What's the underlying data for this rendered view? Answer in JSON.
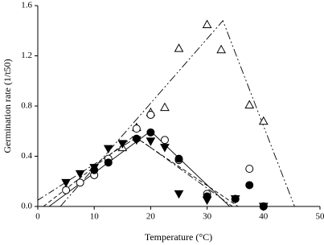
{
  "chart_data": {
    "type": "scatter",
    "x_label": "Temperature (°C)",
    "y_label": "Germination rate (1/t50)",
    "xlim": [
      0,
      50
    ],
    "xticks": [
      0,
      10,
      20,
      30,
      40,
      50
    ],
    "ylim": [
      0,
      1.6
    ],
    "yticks": [
      {
        "value": 0,
        "label": "0.0"
      },
      0.4,
      0.8,
      1.2,
      1.6
    ],
    "series": [
      {
        "marker": "triangle-up-open",
        "x": [
          15,
          17.5,
          20,
          22.5,
          25,
          30,
          32.5,
          37.5,
          40
        ],
        "values": [
          0.47,
          0.63,
          0.75,
          0.79,
          1.26,
          1.45,
          1.25,
          0.81,
          0.68
        ]
      },
      {
        "marker": "circle-open",
        "x": [
          5,
          7.5,
          10,
          12.5,
          17.5,
          20,
          22.5,
          25,
          30,
          35,
          37.5,
          40
        ],
        "values": [
          0.13,
          0.19,
          0.25,
          0.38,
          0.62,
          0.73,
          0.53,
          0.37,
          0.1,
          0.06,
          0.3,
          0
        ]
      },
      {
        "marker": "circle-filled",
        "x": [
          10,
          12.5,
          17.5,
          20,
          25,
          30,
          35,
          37.5,
          40
        ],
        "values": [
          0.29,
          0.35,
          0.54,
          0.59,
          0.38,
          0.08,
          0.06,
          0.17,
          0
        ]
      },
      {
        "marker": "triangle-down-filled",
        "x": [
          5,
          7.5,
          10,
          12.5,
          15,
          17.5,
          20,
          22.5,
          25,
          30,
          35,
          40
        ],
        "values": [
          0.19,
          0.26,
          0.31,
          0.46,
          0.5,
          0.53,
          0.52,
          0.47,
          0.1,
          0.05,
          0.06,
          0
        ]
      }
    ],
    "lines": [
      {
        "dash": "10,3,2,3,2,3",
        "x": [
          4,
          32.8,
          45.5
        ],
        "values": [
          0,
          1.48,
          0
        ]
      },
      {
        "dash": "8,3,2,3",
        "x": [
          0,
          17.5,
          34.5
        ],
        "values": [
          0.05,
          0.55,
          0
        ]
      },
      {
        "dash": "none",
        "x": [
          2,
          20,
          34
        ],
        "values": [
          0,
          0.6,
          0
        ]
      },
      {
        "dash": "5,3",
        "x": [
          1,
          17,
          35.5
        ],
        "values": [
          0,
          0.56,
          0
        ]
      }
    ]
  }
}
